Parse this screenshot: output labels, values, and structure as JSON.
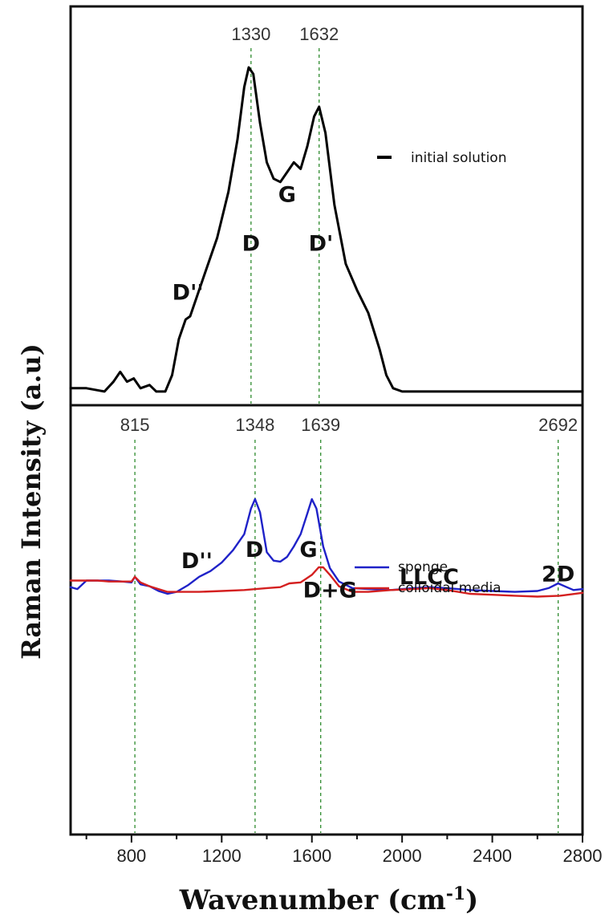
{
  "chart_data": [
    {
      "type": "line",
      "panel": "top",
      "xlim": [
        530,
        2800
      ],
      "grid": false,
      "legend_position": "top-right",
      "series": [
        {
          "name": "initial solution",
          "color": "#000000",
          "points": [
            [
              530,
              0.02
            ],
            [
              600,
              0.02
            ],
            [
              680,
              0.01
            ],
            [
              720,
              0.04
            ],
            [
              750,
              0.07
            ],
            [
              780,
              0.04
            ],
            [
              810,
              0.05
            ],
            [
              840,
              0.02
            ],
            [
              880,
              0.03
            ],
            [
              910,
              0.01
            ],
            [
              950,
              0.01
            ],
            [
              980,
              0.06
            ],
            [
              1010,
              0.17
            ],
            [
              1040,
              0.23
            ],
            [
              1060,
              0.24
            ],
            [
              1090,
              0.3
            ],
            [
              1130,
              0.38
            ],
            [
              1180,
              0.48
            ],
            [
              1230,
              0.62
            ],
            [
              1270,
              0.78
            ],
            [
              1300,
              0.94
            ],
            [
              1320,
              1.0
            ],
            [
              1340,
              0.98
            ],
            [
              1370,
              0.83
            ],
            [
              1400,
              0.71
            ],
            [
              1430,
              0.66
            ],
            [
              1460,
              0.65
            ],
            [
              1490,
              0.68
            ],
            [
              1520,
              0.71
            ],
            [
              1550,
              0.69
            ],
            [
              1580,
              0.76
            ],
            [
              1610,
              0.85
            ],
            [
              1632,
              0.88
            ],
            [
              1660,
              0.8
            ],
            [
              1700,
              0.58
            ],
            [
              1750,
              0.4
            ],
            [
              1800,
              0.32
            ],
            [
              1850,
              0.25
            ],
            [
              1900,
              0.14
            ],
            [
              1930,
              0.06
            ],
            [
              1960,
              0.02
            ],
            [
              2000,
              0.01
            ],
            [
              2100,
              0.01
            ],
            [
              2300,
              0.01
            ],
            [
              2500,
              0.01
            ],
            [
              2700,
              0.01
            ],
            [
              2800,
              0.01
            ]
          ]
        }
      ],
      "peak_markers": [
        {
          "x": 1330,
          "label": "1330"
        },
        {
          "x": 1632,
          "label": "1632"
        }
      ],
      "annotations": [
        {
          "text": "D''",
          "x": 1050,
          "y": 0.29
        },
        {
          "text": "D",
          "x": 1330,
          "y": 0.44
        },
        {
          "text": "G",
          "x": 1490,
          "y": 0.59
        },
        {
          "text": "D'",
          "x": 1640,
          "y": 0.44
        }
      ]
    },
    {
      "type": "line",
      "panel": "bottom",
      "xlabel": "Wavenumber (cm",
      "xlabel_superscript": "-1",
      "xlabel_close": ")",
      "xlim": [
        530,
        2800
      ],
      "xticks": [
        800,
        1200,
        1600,
        2000,
        2400,
        2800
      ],
      "grid": false,
      "legend_position": "middle-right",
      "series": [
        {
          "name": "sponge",
          "color": "#1f22c8",
          "points": [
            [
              530,
              0.07
            ],
            [
              560,
              0.05
            ],
            [
              600,
              0.14
            ],
            [
              650,
              0.14
            ],
            [
              700,
              0.14
            ],
            [
              760,
              0.13
            ],
            [
              800,
              0.12
            ],
            [
              815,
              0.18
            ],
            [
              840,
              0.1
            ],
            [
              880,
              0.08
            ],
            [
              920,
              0.03
            ],
            [
              960,
              0.0
            ],
            [
              1000,
              0.02
            ],
            [
              1050,
              0.09
            ],
            [
              1100,
              0.18
            ],
            [
              1150,
              0.24
            ],
            [
              1200,
              0.33
            ],
            [
              1250,
              0.46
            ],
            [
              1300,
              0.63
            ],
            [
              1330,
              0.9
            ],
            [
              1348,
              1.0
            ],
            [
              1370,
              0.86
            ],
            [
              1400,
              0.44
            ],
            [
              1430,
              0.35
            ],
            [
              1460,
              0.34
            ],
            [
              1490,
              0.39
            ],
            [
              1520,
              0.5
            ],
            [
              1550,
              0.63
            ],
            [
              1580,
              0.85
            ],
            [
              1600,
              1.0
            ],
            [
              1620,
              0.9
            ],
            [
              1650,
              0.5
            ],
            [
              1680,
              0.27
            ],
            [
              1720,
              0.13
            ],
            [
              1780,
              0.06
            ],
            [
              1850,
              0.05
            ],
            [
              1950,
              0.04
            ],
            [
              2050,
              0.06
            ],
            [
              2120,
              0.07
            ],
            [
              2200,
              0.06
            ],
            [
              2300,
              0.04
            ],
            [
              2400,
              0.03
            ],
            [
              2500,
              0.02
            ],
            [
              2600,
              0.03
            ],
            [
              2650,
              0.06
            ],
            [
              2692,
              0.11
            ],
            [
              2730,
              0.07
            ],
            [
              2760,
              0.04
            ],
            [
              2800,
              0.05
            ]
          ]
        },
        {
          "name": "colloidal media",
          "color": "#d42020",
          "points": [
            [
              530,
              0.14
            ],
            [
              600,
              0.14
            ],
            [
              650,
              0.14
            ],
            [
              700,
              0.13
            ],
            [
              760,
              0.13
            ],
            [
              800,
              0.13
            ],
            [
              815,
              0.18
            ],
            [
              840,
              0.12
            ],
            [
              880,
              0.08
            ],
            [
              920,
              0.05
            ],
            [
              960,
              0.02
            ],
            [
              1000,
              0.02
            ],
            [
              1100,
              0.02
            ],
            [
              1200,
              0.03
            ],
            [
              1300,
              0.04
            ],
            [
              1400,
              0.06
            ],
            [
              1460,
              0.07
            ],
            [
              1500,
              0.11
            ],
            [
              1550,
              0.12
            ],
            [
              1600,
              0.2
            ],
            [
              1630,
              0.28
            ],
            [
              1650,
              0.28
            ],
            [
              1680,
              0.2
            ],
            [
              1720,
              0.08
            ],
            [
              1780,
              0.02
            ],
            [
              1850,
              0.02
            ],
            [
              1950,
              0.04
            ],
            [
              2050,
              0.05
            ],
            [
              2120,
              0.06
            ],
            [
              2200,
              0.04
            ],
            [
              2300,
              0.0
            ],
            [
              2400,
              -0.01
            ],
            [
              2500,
              -0.02
            ],
            [
              2600,
              -0.03
            ],
            [
              2700,
              -0.02
            ],
            [
              2800,
              0.01
            ]
          ]
        }
      ],
      "peak_markers": [
        {
          "x": 815,
          "label": "815"
        },
        {
          "x": 1348,
          "label": "1348"
        },
        {
          "x": 1639,
          "label": "1639"
        },
        {
          "x": 2692,
          "label": "2692"
        }
      ],
      "annotations": [
        {
          "text": "D''",
          "x": 1090,
          "y": 0.27
        },
        {
          "text": "D",
          "x": 1345,
          "y": 0.39
        },
        {
          "text": "G",
          "x": 1585,
          "y": 0.39
        },
        {
          "text": "LLCC",
          "x": 2120,
          "y": 0.1
        },
        {
          "text": "2D",
          "x": 2692,
          "y": 0.13
        },
        {
          "text": "D+G",
          "x": 1680,
          "y": -0.04
        }
      ]
    }
  ],
  "ylabel": "Raman Intensity (a.u)"
}
